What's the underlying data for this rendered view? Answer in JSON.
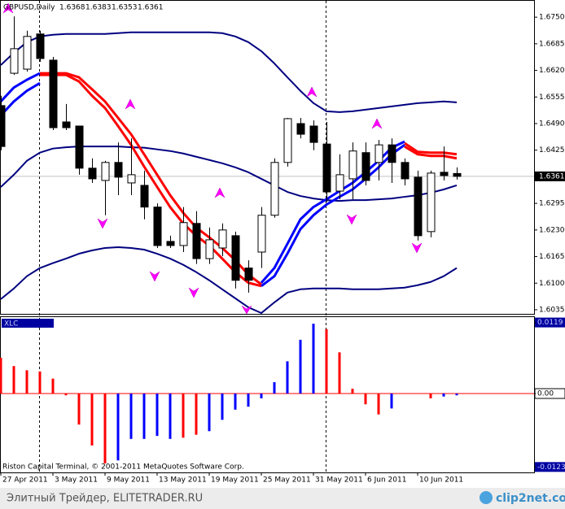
{
  "chart_data": [
    {
      "type": "candlestick",
      "symbol": "GBPUSD,Daily",
      "categories": [
        "27 Apr 2011",
        null,
        null,
        null,
        "3 May 2011",
        null,
        null,
        null,
        "9 May 2011",
        null,
        null,
        null,
        "13 May 2011",
        null,
        null,
        null,
        "19 May 2011",
        null,
        null,
        null,
        "25 May 2011",
        null,
        null,
        null,
        "31 May 2011",
        null,
        null,
        null,
        "6 Jun 2011",
        null,
        null,
        null,
        "10 Jun 2011",
        null,
        null,
        null
      ],
      "open": [
        1.6534,
        1.6613,
        1.6623,
        1.6709,
        1.6645,
        1.6494,
        1.6484,
        1.6381,
        1.6351,
        1.6395,
        1.6345,
        1.6339,
        1.6286,
        1.6202,
        1.6192,
        1.6246,
        1.616,
        1.6186,
        1.6216,
        1.6137,
        1.6176,
        1.6266,
        1.6395,
        1.649,
        1.6484,
        1.644,
        1.6325,
        1.6355,
        1.6419,
        1.6395,
        1.6438,
        1.6395,
        1.6359,
        1.6226,
        1.6371,
        1.6368
      ],
      "high": [
        1.6558,
        1.6752,
        1.6717,
        1.6717,
        1.6653,
        1.6538,
        1.6484,
        1.6405,
        1.6399,
        1.6444,
        1.6454,
        1.6375,
        1.6295,
        1.6216,
        1.6286,
        1.6276,
        1.6236,
        1.6246,
        1.6226,
        1.6156,
        1.6286,
        1.6405,
        1.6504,
        1.6504,
        1.6498,
        1.6494,
        1.6415,
        1.6444,
        1.6444,
        1.645,
        1.6454,
        1.6405,
        1.6375,
        1.6375,
        1.6434,
        1.6383
      ],
      "low": [
        1.6425,
        1.6609,
        1.6617,
        1.6641,
        1.6474,
        1.6474,
        1.6365,
        1.6345,
        1.6266,
        1.6315,
        1.6315,
        1.6256,
        1.6186,
        1.6186,
        1.6176,
        1.6147,
        1.6147,
        1.6166,
        1.6087,
        1.6077,
        1.6137,
        1.626,
        1.6385,
        1.6454,
        1.6425,
        1.6299,
        1.6305,
        1.6305,
        1.6339,
        1.6351,
        1.6345,
        1.6339,
        1.6204,
        1.6212,
        1.6351,
        1.6353
      ],
      "close": [
        1.6434,
        1.6673,
        1.6703,
        1.6649,
        1.648,
        1.648,
        1.6381,
        1.6355,
        1.6395,
        1.6359,
        1.6365,
        1.6286,
        1.6192,
        1.6192,
        1.6248,
        1.616,
        1.6206,
        1.623,
        1.6107,
        1.6107,
        1.6266,
        1.6395,
        1.6502,
        1.6464,
        1.6444,
        1.6323,
        1.6365,
        1.6423,
        1.6351,
        1.6438,
        1.6395,
        1.6355,
        1.6216,
        1.6369,
        1.6363,
        1.6361
      ],
      "up_color": "#ffffff",
      "down_color": "#000000",
      "lines": [
        {
          "color": "#000080",
          "values": [
            1.6633,
            1.6663,
            1.6689,
            1.6703,
            1.6707,
            1.6709,
            1.6709,
            1.6709,
            1.6709,
            1.6711,
            1.6713,
            1.6713,
            1.6713,
            1.6713,
            1.6713,
            1.6713,
            1.6713,
            1.6711,
            1.6703,
            1.6689,
            1.6667,
            1.6637,
            1.6603,
            1.657,
            1.654,
            1.652,
            1.6518,
            1.652,
            1.6524,
            1.6528,
            1.6532,
            1.6536,
            1.654,
            1.6542,
            1.6544,
            1.6542
          ]
        },
        {
          "color": "#000080",
          "values": [
            1.6335,
            1.6365,
            1.6399,
            1.6419,
            1.6429,
            1.6432,
            1.6434,
            1.6434,
            1.6434,
            1.6434,
            1.6432,
            1.6431,
            1.6427,
            1.6423,
            1.6417,
            1.6409,
            1.6401,
            1.6393,
            1.6383,
            1.6371,
            1.6355,
            1.6339,
            1.6323,
            1.6313,
            1.6307,
            1.6303,
            1.6301,
            1.6303,
            1.6303,
            1.6305,
            1.6307,
            1.6311,
            1.6315,
            1.6321,
            1.6329,
            1.6339
          ]
        },
        {
          "color": "#000080",
          "values": [
            1.6061,
            1.6087,
            1.6117,
            1.6137,
            1.6149,
            1.616,
            1.6172,
            1.618,
            1.6186,
            1.6188,
            1.6186,
            1.6182,
            1.6172,
            1.616,
            1.6145,
            1.6127,
            1.6107,
            1.6085,
            1.6063,
            1.6041,
            1.6027,
            1.6053,
            1.6077,
            1.6085,
            1.6087,
            1.6087,
            1.6087,
            1.6085,
            1.6085,
            1.6085,
            1.6087,
            1.6089,
            1.6095,
            1.6103,
            1.6117,
            1.6137
          ]
        },
        {
          "color": "#ff0000",
          "values": [
            null,
            null,
            null,
            1.6613,
            1.6613,
            1.6613,
            1.6603,
            1.6574,
            1.6544,
            1.6504,
            1.6464,
            1.6415,
            1.6365,
            1.6315,
            1.6272,
            1.6236,
            1.6212,
            1.6186,
            1.6156,
            1.6121,
            1.6097,
            null,
            null,
            null,
            null,
            null,
            null,
            null,
            null,
            null,
            null,
            1.6442,
            1.6421,
            1.6419,
            1.6419,
            1.6415
          ]
        },
        {
          "color": "#ff0000",
          "values": [
            null,
            null,
            null,
            1.6609,
            1.6609,
            1.6609,
            1.6593,
            1.6558,
            1.6528,
            1.6484,
            1.6438,
            1.6385,
            1.6335,
            1.6286,
            1.6246,
            1.6216,
            1.6192,
            1.616,
            1.6127,
            1.6101,
            1.6093,
            null,
            null,
            null,
            null,
            null,
            null,
            null,
            null,
            null,
            null,
            1.6434,
            1.6415,
            1.6411,
            1.6411,
            1.6405
          ]
        },
        {
          "color": "#0000ff",
          "values": [
            1.6544,
            1.6578,
            1.6597,
            1.6613,
            null,
            null,
            null,
            null,
            null,
            null,
            null,
            null,
            null,
            null,
            null,
            null,
            null,
            null,
            null,
            null,
            1.6101,
            1.6137,
            1.6196,
            1.6256,
            1.6286,
            1.6305,
            1.6325,
            1.6345,
            1.6371,
            1.6399,
            1.6431,
            1.6446,
            null,
            null,
            null,
            null
          ]
        },
        {
          "color": "#0000ff",
          "values": [
            1.651,
            1.6544,
            1.657,
            1.6589,
            null,
            null,
            null,
            null,
            null,
            null,
            null,
            null,
            null,
            null,
            null,
            null,
            null,
            null,
            null,
            null,
            1.6093,
            1.6117,
            1.6172,
            1.6232,
            1.6266,
            1.6292,
            1.6311,
            1.6329,
            1.6355,
            1.6383,
            1.6415,
            1.6438,
            null,
            null,
            null,
            null
          ]
        }
      ],
      "ylim": [
        1.6025,
        1.6792
      ],
      "yticks": [
        {
          "value": 1.675,
          "label": "1.6750"
        },
        1.6685,
        {
          "value": 1.662,
          "label": "1.6620"
        },
        1.6555,
        {
          "value": 1.649,
          "label": "1.6490"
        },
        1.6425,
        1.6295,
        {
          "value": 1.623,
          "label": "1.6230"
        },
        1.6165,
        {
          "value": 1.61,
          "label": "1.6100"
        },
        1.6035
      ],
      "current_price": 1.6361
    },
    {
      "type": "bar",
      "title": "XLC",
      "series": [
        {
          "color": "#ff0000",
          "values": [
            0.006,
            0.0046,
            0.0039,
            0.0037,
            0.0025,
            -0.0003,
            -0.0052,
            -0.0087,
            -0.0117,
            null,
            null,
            null,
            null,
            null,
            -0.0074,
            -0.0069,
            null,
            null,
            null,
            null,
            null,
            null,
            null,
            null,
            null,
            0.0108,
            0.0069,
            0.0008,
            -0.0018,
            -0.0035,
            null,
            null,
            null,
            -0.0008,
            null,
            null
          ]
        },
        {
          "color": "#0000ff",
          "values": [
            null,
            null,
            null,
            null,
            null,
            null,
            null,
            null,
            null,
            -0.0112,
            -0.0076,
            -0.0076,
            -0.0071,
            -0.0076,
            null,
            null,
            -0.0063,
            -0.0044,
            -0.0027,
            -0.0022,
            -0.0008,
            0.0019,
            0.0054,
            0.009,
            0.0117,
            null,
            null,
            null,
            null,
            null,
            -0.0025,
            null,
            null,
            null,
            -0.0005,
            -0.0003
          ]
        }
      ],
      "ylim": [
        -0.0128,
        0.0128
      ],
      "yticks": [
        0.0119,
        {
          "value": 0,
          "label": "0.00"
        },
        -0.0123
      ],
      "footnote": "Riston Capital Terminal, © 2001-2011 MetaQuotes Software Corp."
    }
  ],
  "footer": {
    "source": "Элитный Трейдер, ELITETRADER.RU",
    "logo": "clip2net.com"
  }
}
